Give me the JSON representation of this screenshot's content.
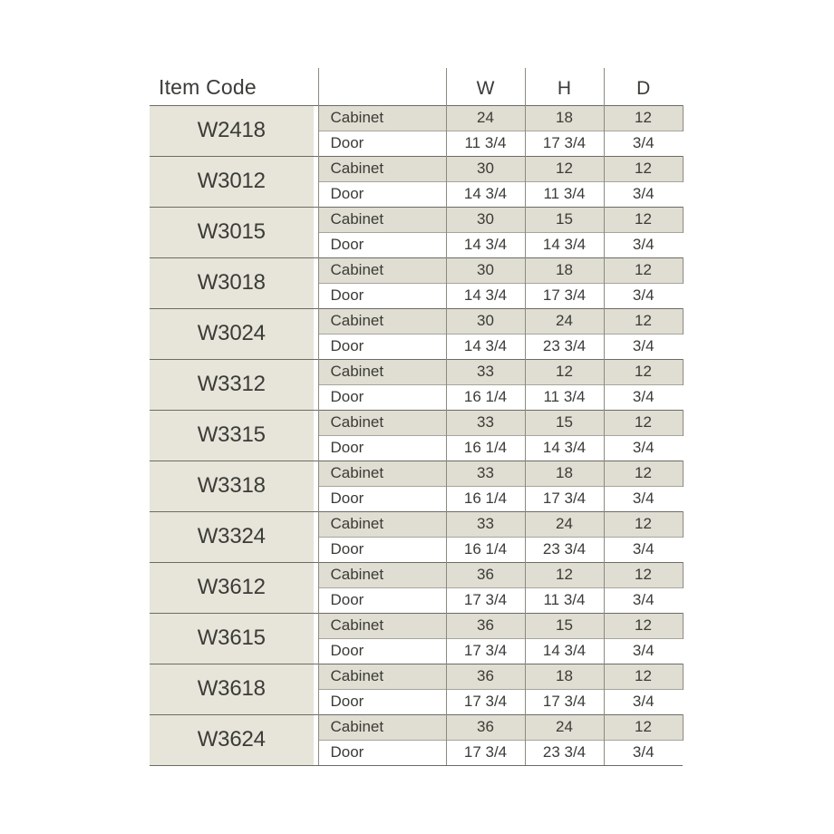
{
  "table": {
    "header": {
      "item_code": "Item Code",
      "row_type": "",
      "dims": [
        "W",
        "H",
        "D"
      ]
    },
    "row_labels": {
      "cabinet": "Cabinet",
      "door": "Door"
    },
    "colors": {
      "page_bg": "#ffffff",
      "item_code_bg": "#e7e5da",
      "cabinet_row_bg": "#e0ded2",
      "grid_dark": "#6b6b64",
      "grid_light": "#a6a59b",
      "grid_vertical": "#8b8a81",
      "text": "#3b3b37"
    },
    "items": [
      {
        "code": "W2418",
        "cabinet": [
          "24",
          "18",
          "12"
        ],
        "door": [
          "11 3/4",
          "17 3/4",
          "3/4"
        ]
      },
      {
        "code": "W3012",
        "cabinet": [
          "30",
          "12",
          "12"
        ],
        "door": [
          "14 3/4",
          "11 3/4",
          "3/4"
        ]
      },
      {
        "code": "W3015",
        "cabinet": [
          "30",
          "15",
          "12"
        ],
        "door": [
          "14 3/4",
          "14 3/4",
          "3/4"
        ]
      },
      {
        "code": "W3018",
        "cabinet": [
          "30",
          "18",
          "12"
        ],
        "door": [
          "14 3/4",
          "17 3/4",
          "3/4"
        ]
      },
      {
        "code": "W3024",
        "cabinet": [
          "30",
          "24",
          "12"
        ],
        "door": [
          "14 3/4",
          "23 3/4",
          "3/4"
        ]
      },
      {
        "code": "W3312",
        "cabinet": [
          "33",
          "12",
          "12"
        ],
        "door": [
          "16 1/4",
          "11 3/4",
          "3/4"
        ]
      },
      {
        "code": "W3315",
        "cabinet": [
          "33",
          "15",
          "12"
        ],
        "door": [
          "16 1/4",
          "14 3/4",
          "3/4"
        ]
      },
      {
        "code": "W3318",
        "cabinet": [
          "33",
          "18",
          "12"
        ],
        "door": [
          "16 1/4",
          "17 3/4",
          "3/4"
        ]
      },
      {
        "code": "W3324",
        "cabinet": [
          "33",
          "24",
          "12"
        ],
        "door": [
          "16 1/4",
          "23 3/4",
          "3/4"
        ]
      },
      {
        "code": "W3612",
        "cabinet": [
          "36",
          "12",
          "12"
        ],
        "door": [
          "17 3/4",
          "11 3/4",
          "3/4"
        ]
      },
      {
        "code": "W3615",
        "cabinet": [
          "36",
          "15",
          "12"
        ],
        "door": [
          "17 3/4",
          "14 3/4",
          "3/4"
        ]
      },
      {
        "code": "W3618",
        "cabinet": [
          "36",
          "18",
          "12"
        ],
        "door": [
          "17 3/4",
          "17 3/4",
          "3/4"
        ]
      },
      {
        "code": "W3624",
        "cabinet": [
          "36",
          "24",
          "12"
        ],
        "door": [
          "17 3/4",
          "23 3/4",
          "3/4"
        ]
      }
    ]
  }
}
